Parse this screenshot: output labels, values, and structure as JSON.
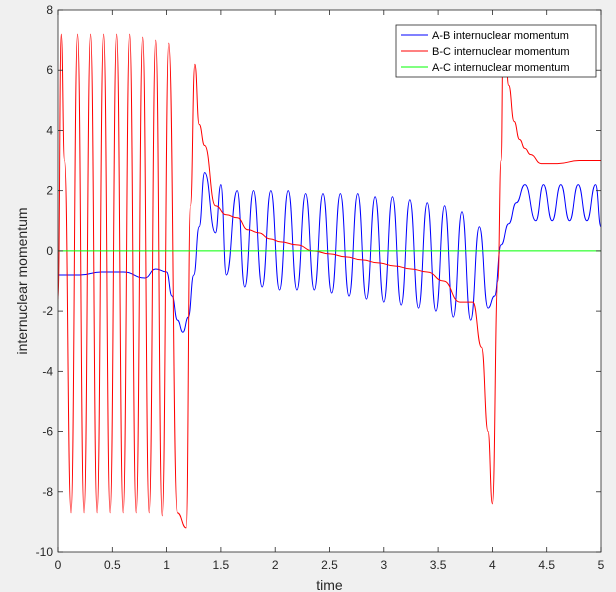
{
  "chart_data": {
    "type": "line",
    "title": "",
    "xlabel": "time",
    "ylabel": "internuclear momentum",
    "xlim": [
      0,
      5
    ],
    "ylim": [
      -10,
      8
    ],
    "xticks": [
      0,
      0.5,
      1,
      1.5,
      2,
      2.5,
      3,
      3.5,
      4,
      4.5,
      5
    ],
    "xtick_labels": [
      "0",
      "0.5",
      "1",
      "1.5",
      "2",
      "2.5",
      "3",
      "3.5",
      "4",
      "4.5",
      "5"
    ],
    "yticks": [
      -10,
      -8,
      -6,
      -4,
      -2,
      0,
      2,
      4,
      6,
      8
    ],
    "ytick_labels": [
      "-10",
      "-8",
      "-6",
      "-4",
      "-2",
      "0",
      "2",
      "4",
      "6",
      "8"
    ],
    "grid": false,
    "legend_position": "top-right",
    "series": [
      {
        "name": "A-B internuclear momentum",
        "color": "#0000ff",
        "x": [
          0,
          0.2,
          0.4,
          0.6,
          0.8,
          0.9,
          1.0,
          1.05,
          1.1,
          1.15,
          1.2,
          1.25,
          1.3,
          1.35,
          1.45,
          1.5,
          1.55,
          1.65,
          1.72,
          1.8,
          1.88,
          1.96,
          2.04,
          2.12,
          2.2,
          2.28,
          2.36,
          2.44,
          2.52,
          2.6,
          2.68,
          2.76,
          2.84,
          2.92,
          3.0,
          3.08,
          3.16,
          3.24,
          3.32,
          3.4,
          3.48,
          3.56,
          3.64,
          3.72,
          3.8,
          3.88,
          3.96,
          4.02,
          4.08,
          4.15,
          4.22,
          4.3,
          4.4,
          4.47,
          4.55,
          4.63,
          4.71,
          4.79,
          4.87,
          4.95,
          5.0
        ],
        "y": [
          -0.8,
          -0.8,
          -0.7,
          -0.7,
          -0.9,
          -0.6,
          -0.7,
          -1.5,
          -2.3,
          -2.7,
          -2.2,
          -0.8,
          0.8,
          2.6,
          0.6,
          2.2,
          -0.8,
          2.0,
          -1.2,
          2.0,
          -1.2,
          2.0,
          -1.3,
          2.0,
          -1.3,
          1.9,
          -1.3,
          1.9,
          -1.4,
          1.9,
          -1.5,
          1.9,
          -1.6,
          1.8,
          -1.7,
          1.8,
          -1.8,
          1.7,
          -1.9,
          1.6,
          -2.0,
          1.5,
          -2.2,
          1.3,
          -2.3,
          0.8,
          -1.9,
          -1.5,
          0.2,
          0.9,
          1.6,
          2.2,
          1.0,
          2.2,
          1.0,
          2.2,
          1.0,
          2.2,
          1.0,
          2.2,
          0.8
        ]
      },
      {
        "name": "B-C internuclear momentum",
        "color": "#ff0000",
        "x": [
          0,
          0.03,
          0.06,
          0.12,
          0.18,
          0.24,
          0.3,
          0.36,
          0.42,
          0.48,
          0.54,
          0.6,
          0.66,
          0.72,
          0.78,
          0.84,
          0.9,
          0.96,
          1.02,
          1.1,
          1.18,
          1.22,
          1.26,
          1.3,
          1.35,
          1.45,
          1.55,
          1.65,
          1.75,
          1.85,
          1.95,
          2.05,
          2.2,
          2.35,
          2.5,
          2.65,
          2.8,
          2.95,
          3.1,
          3.25,
          3.4,
          3.55,
          3.7,
          3.82,
          3.9,
          3.96,
          4.0,
          4.05,
          4.08,
          4.1,
          4.12,
          4.15,
          4.2,
          4.25,
          4.3,
          4.35,
          4.45,
          4.6,
          4.8,
          5.0
        ],
        "y": [
          -1.6,
          7.2,
          3.0,
          -8.7,
          7.2,
          -8.7,
          7.2,
          -8.7,
          7.2,
          -8.7,
          7.2,
          -8.7,
          7.2,
          -8.7,
          7.1,
          -8.7,
          7.0,
          -8.8,
          6.9,
          -8.7,
          -9.2,
          1.5,
          6.2,
          4.2,
          3.5,
          1.5,
          1.2,
          1.1,
          0.7,
          0.6,
          0.4,
          0.3,
          0.2,
          0.0,
          -0.1,
          -0.2,
          -0.3,
          -0.4,
          -0.5,
          -0.6,
          -0.7,
          -1.0,
          -1.7,
          -1.7,
          -3.2,
          -6.0,
          -8.4,
          -1.0,
          3.0,
          7.2,
          6.5,
          5.5,
          4.3,
          3.7,
          3.4,
          3.2,
          2.9,
          2.9,
          3.0,
          3.0
        ]
      },
      {
        "name": "A-C internuclear momentum",
        "color": "#00ff00",
        "x": [
          0,
          5
        ],
        "y": [
          0,
          0
        ]
      }
    ]
  }
}
